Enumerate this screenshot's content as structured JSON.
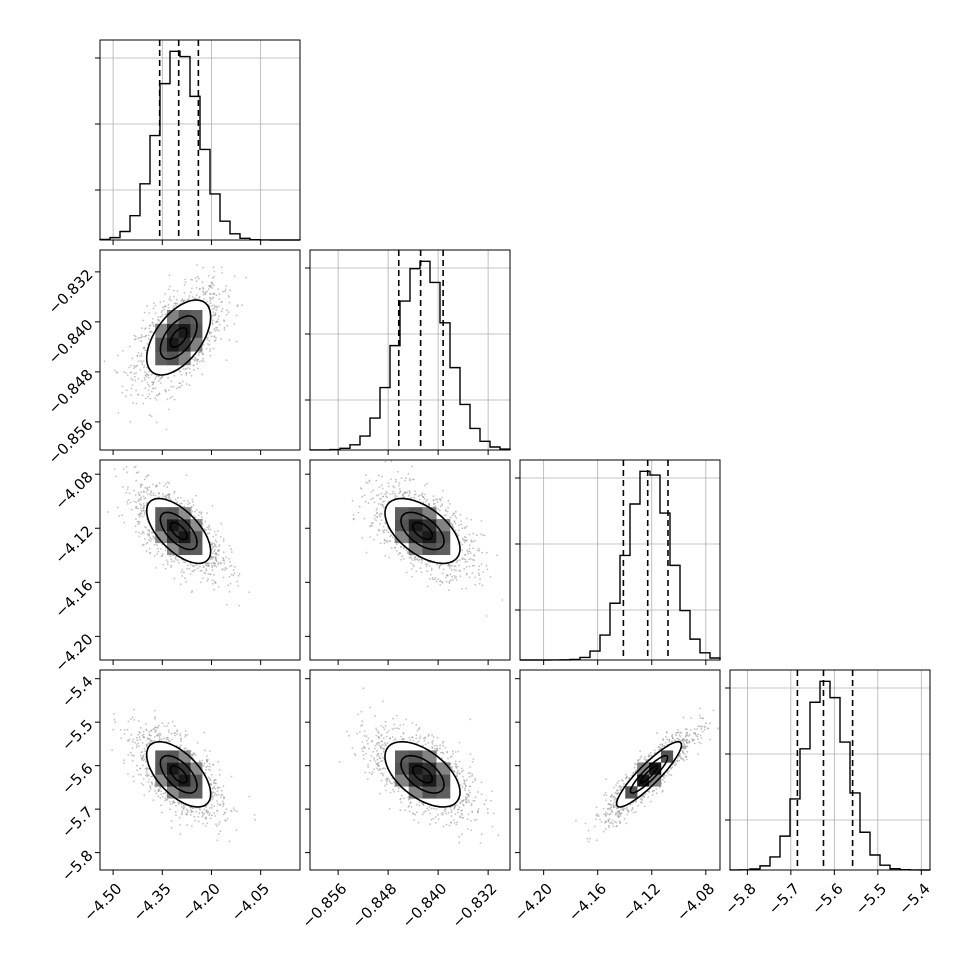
{
  "chart_data": {
    "type": "corner",
    "grid": true,
    "colors": {
      "line": "#000000",
      "grid": "#b0b0b0",
      "scatter": "#9a9a9a"
    },
    "parameters": [
      {
        "name": "",
        "range": [
          -4.54,
          -3.93
        ],
        "ticks": [
          "−4.50",
          "−4.35",
          "−4.20",
          "−4.05"
        ],
        "tick_values": [
          -4.5,
          -4.35,
          -4.2,
          -4.05
        ],
        "mean": -4.3,
        "std": 0.065,
        "quantiles": [
          -4.358,
          -4.3,
          -4.24
        ]
      },
      {
        "name": "",
        "range": [
          -0.8605,
          -0.8285
        ],
        "ticks": [
          "−0.856",
          "−0.848",
          "−0.840",
          "−0.832"
        ],
        "tick_values": [
          -0.856,
          -0.848,
          -0.84,
          -0.832
        ],
        "mean": -0.8425,
        "std": 0.004,
        "quantiles": [
          -0.8463,
          -0.8428,
          -0.8392
        ]
      },
      {
        "name": "",
        "range": [
          -4.2175,
          -4.0695
        ],
        "ticks": [
          "−4.20",
          "−4.16",
          "−4.12",
          "−4.08"
        ],
        "tick_values": [
          -4.2,
          -4.16,
          -4.12,
          -4.08
        ],
        "mean": -4.122,
        "std": 0.016,
        "quantiles": [
          -4.141,
          -4.123,
          -4.108
        ]
      },
      {
        "name": "",
        "range": [
          -5.84,
          -5.38
        ],
        "ticks": [
          "−5.8",
          "−5.7",
          "−5.6",
          "−5.5",
          "−5.4"
        ],
        "tick_values": [
          -5.8,
          -5.7,
          -5.6,
          -5.5,
          -5.4
        ],
        "mean": -5.62,
        "std": 0.05,
        "quantiles": [
          -5.685,
          -5.625,
          -5.558
        ]
      }
    ],
    "correlations": [
      {
        "row": 1,
        "col": 0,
        "rho": 0.55
      },
      {
        "row": 2,
        "col": 0,
        "rho": -0.62
      },
      {
        "row": 2,
        "col": 1,
        "rho": -0.55
      },
      {
        "row": 3,
        "col": 0,
        "rho": -0.6
      },
      {
        "row": 3,
        "col": 1,
        "rho": -0.55
      },
      {
        "row": 3,
        "col": 2,
        "rho": 0.9
      }
    ]
  }
}
